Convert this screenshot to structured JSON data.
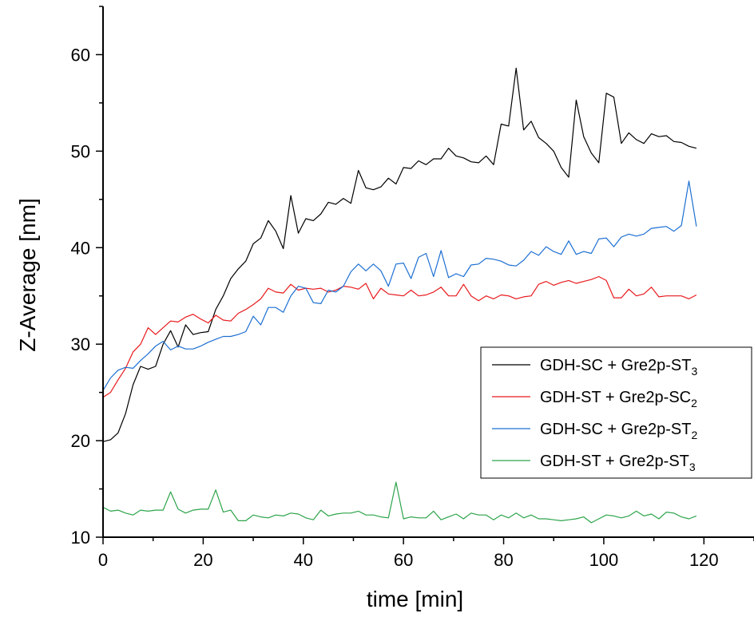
{
  "chart_data": {
    "type": "line",
    "title": "",
    "xlabel": "time [min]",
    "ylabel": "Z-Average [nm]",
    "xlim": [
      0,
      130
    ],
    "ylim": [
      10,
      65
    ],
    "x_ticks": [
      0,
      20,
      40,
      60,
      80,
      100,
      120
    ],
    "y_ticks": [
      10,
      20,
      30,
      40,
      50,
      60
    ],
    "grid": false,
    "legend_position": "center-right",
    "x": [
      0,
      1.5,
      3,
      4.5,
      6,
      7.5,
      9,
      10.5,
      12,
      13.5,
      15,
      16.5,
      18,
      19.5,
      21,
      22.5,
      24,
      25.5,
      27,
      28.5,
      30,
      31.5,
      33,
      34.5,
      36,
      37.5,
      39,
      40.5,
      42,
      43.5,
      45,
      46.5,
      48,
      49.5,
      51,
      52.5,
      54,
      55.5,
      57,
      58.5,
      60,
      61.5,
      63,
      64.5,
      66,
      67.5,
      69,
      70.5,
      72,
      73.5,
      75,
      76.5,
      78,
      79.5,
      81,
      82.5,
      84,
      85.5,
      87,
      88.5,
      90,
      91.5,
      93,
      94.5,
      96,
      97.5,
      99,
      100.5,
      102,
      103.5,
      105,
      106.5,
      108,
      109.5,
      111,
      112.5,
      114,
      115.5,
      117,
      118.5
    ],
    "series": [
      {
        "name": "GDH-SC + Gre2p-ST3",
        "name_main": "GDH-SC + Gre2p-ST",
        "name_sub": "3",
        "color": "#000000",
        "values": [
          19.9,
          20.1,
          20.8,
          22.8,
          25.8,
          27.7,
          27.4,
          27.7,
          30.0,
          31.4,
          29.7,
          32.0,
          31.0,
          31.2,
          31.3,
          33.6,
          35.0,
          36.8,
          37.8,
          38.6,
          40.4,
          41.0,
          42.8,
          41.7,
          39.9,
          45.4,
          41.5,
          43.0,
          42.8,
          43.5,
          44.7,
          44.5,
          45.1,
          44.6,
          48.0,
          46.2,
          46.0,
          46.3,
          47.2,
          46.6,
          48.3,
          48.2,
          49.0,
          48.6,
          49.2,
          49.2,
          50.3,
          49.5,
          49.3,
          48.9,
          48.8,
          49.5,
          48.6,
          52.8,
          52.6,
          58.6,
          52.2,
          53.1,
          51.4,
          50.8,
          50.0,
          48.3,
          47.3,
          55.3,
          51.5,
          49.8,
          48.8,
          56.0,
          55.6,
          50.8,
          51.9,
          51.2,
          50.8,
          51.8,
          51.5,
          51.6,
          51.0,
          50.9,
          50.5,
          50.3
        ]
      },
      {
        "name": "GDH-ST + Gre2p-SC2",
        "name_main": "GDH-ST + Gre2p-SC",
        "name_sub": "2",
        "color": "#e8191c",
        "values": [
          24.5,
          25.0,
          26.3,
          27.5,
          29.2,
          30.0,
          31.7,
          31.0,
          31.7,
          32.4,
          32.3,
          32.8,
          33.1,
          32.6,
          32.2,
          33.0,
          32.5,
          32.4,
          33.2,
          33.6,
          34.1,
          34.7,
          35.8,
          35.4,
          35.3,
          36.2,
          35.6,
          35.8,
          35.7,
          35.8,
          35.4,
          35.6,
          36.0,
          35.9,
          35.7,
          36.3,
          34.7,
          35.8,
          35.2,
          35.1,
          35.0,
          35.6,
          35.0,
          35.1,
          35.4,
          35.9,
          35.0,
          35.0,
          36.2,
          35.0,
          34.5,
          35.0,
          34.7,
          35.1,
          35.0,
          34.7,
          34.9,
          35.0,
          36.2,
          36.5,
          36.1,
          36.4,
          36.6,
          36.3,
          36.5,
          36.7,
          37.0,
          36.6,
          34.8,
          34.8,
          35.7,
          35.0,
          35.2,
          35.9,
          34.9,
          35.0,
          35.0,
          35.0,
          34.7,
          35.1
        ]
      },
      {
        "name": "GDH-SC + Gre2p-ST2",
        "name_main": "GDH-SC + Gre2p-ST",
        "name_sub": "2",
        "color": "#1c6fd2",
        "values": [
          25.2,
          26.5,
          27.3,
          27.6,
          27.5,
          28.3,
          29.0,
          29.8,
          30.3,
          29.4,
          29.8,
          29.5,
          29.5,
          29.8,
          30.2,
          30.5,
          30.8,
          30.8,
          31.0,
          31.3,
          32.9,
          32.0,
          33.8,
          33.8,
          33.3,
          35.0,
          36.0,
          35.8,
          34.3,
          34.2,
          35.6,
          35.4,
          36.0,
          37.5,
          38.3,
          37.6,
          38.3,
          37.6,
          36.0,
          38.3,
          38.4,
          36.8,
          39.0,
          39.4,
          37.0,
          39.7,
          36.9,
          37.3,
          37.0,
          38.2,
          38.3,
          38.9,
          38.8,
          38.6,
          38.2,
          38.1,
          38.7,
          39.6,
          39.2,
          40.1,
          39.6,
          39.3,
          40.7,
          39.3,
          39.6,
          39.4,
          40.9,
          41.0,
          40.1,
          41.1,
          41.4,
          41.2,
          41.4,
          42.0,
          42.1,
          42.2,
          41.7,
          42.3,
          46.9,
          42.2
        ]
      },
      {
        "name": "GDH-ST + Gre2p-ST3",
        "name_main": "GDH-ST + Gre2p-ST",
        "name_sub": "3",
        "color": "#2ca44a",
        "values": [
          13.1,
          12.7,
          12.8,
          12.5,
          12.3,
          12.8,
          12.7,
          12.8,
          12.8,
          14.7,
          12.9,
          12.5,
          12.8,
          12.9,
          12.9,
          14.9,
          12.6,
          12.8,
          11.7,
          11.7,
          12.3,
          12.1,
          12.0,
          12.3,
          12.2,
          12.5,
          12.4,
          12.0,
          11.8,
          12.8,
          12.2,
          12.4,
          12.5,
          12.5,
          12.7,
          12.3,
          12.3,
          12.1,
          12.0,
          15.7,
          11.9,
          12.1,
          12.0,
          12.0,
          12.7,
          11.8,
          12.1,
          12.4,
          11.9,
          12.5,
          12.3,
          12.3,
          11.8,
          12.3,
          12.0,
          12.5,
          12.0,
          12.3,
          11.9,
          11.9,
          11.8,
          11.7,
          11.8,
          11.9,
          12.1,
          11.5,
          11.9,
          12.3,
          12.2,
          12.0,
          12.2,
          12.7,
          12.2,
          12.4,
          11.9,
          12.6,
          12.5,
          12.1,
          11.9,
          12.2
        ]
      }
    ]
  }
}
